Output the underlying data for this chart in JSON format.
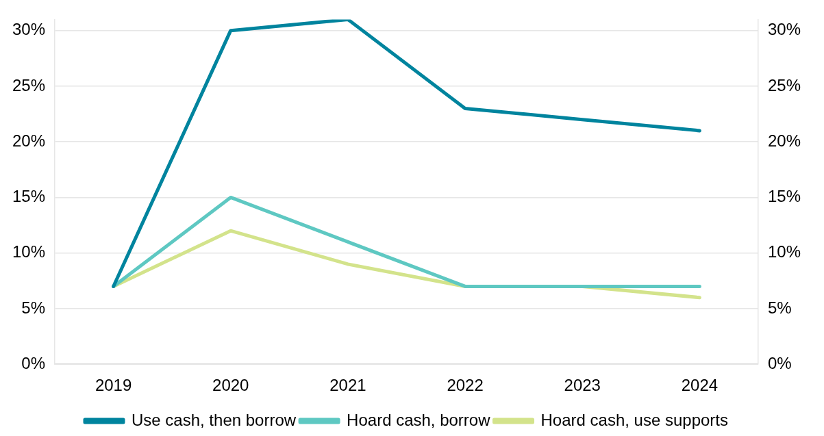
{
  "chart_data": {
    "type": "line",
    "categories": [
      "2019",
      "2020",
      "2021",
      "2022",
      "2023",
      "2024"
    ],
    "series": [
      {
        "name": "Use cash, then borrow",
        "color": "#00849e",
        "values": [
          7,
          30,
          31,
          23,
          22,
          21
        ]
      },
      {
        "name": "Hoard cash, borrow",
        "color": "#5ec8c2",
        "values": [
          7,
          15,
          11,
          7,
          7,
          7
        ]
      },
      {
        "name": "Hoard cash, use supports",
        "color": "#d3e38b",
        "values": [
          7,
          12,
          9,
          7,
          7,
          6
        ]
      }
    ],
    "ylim": [
      0,
      31
    ],
    "yticks": [
      {
        "value": 0,
        "label": "0%"
      },
      {
        "value": 5,
        "label": "5%"
      },
      {
        "value": 10,
        "label": "10%"
      },
      {
        "value": 15,
        "label": "15%"
      },
      {
        "value": 20,
        "label": "20%"
      },
      {
        "value": 25,
        "label": "25%"
      },
      {
        "value": 30,
        "label": "30%"
      }
    ],
    "y2lim": [
      0,
      31
    ],
    "y2ticks": [
      {
        "value": 0,
        "label": "0%"
      },
      {
        "value": 5,
        "label": "5%"
      },
      {
        "value": 10,
        "label": "10%"
      },
      {
        "value": 15,
        "label": "15%"
      },
      {
        "value": 20,
        "label": "20%"
      },
      {
        "value": 25,
        "label": "25%"
      },
      {
        "value": 30,
        "label": "30%"
      }
    ],
    "grid": "y",
    "legend": "bottom",
    "marker": "none"
  }
}
